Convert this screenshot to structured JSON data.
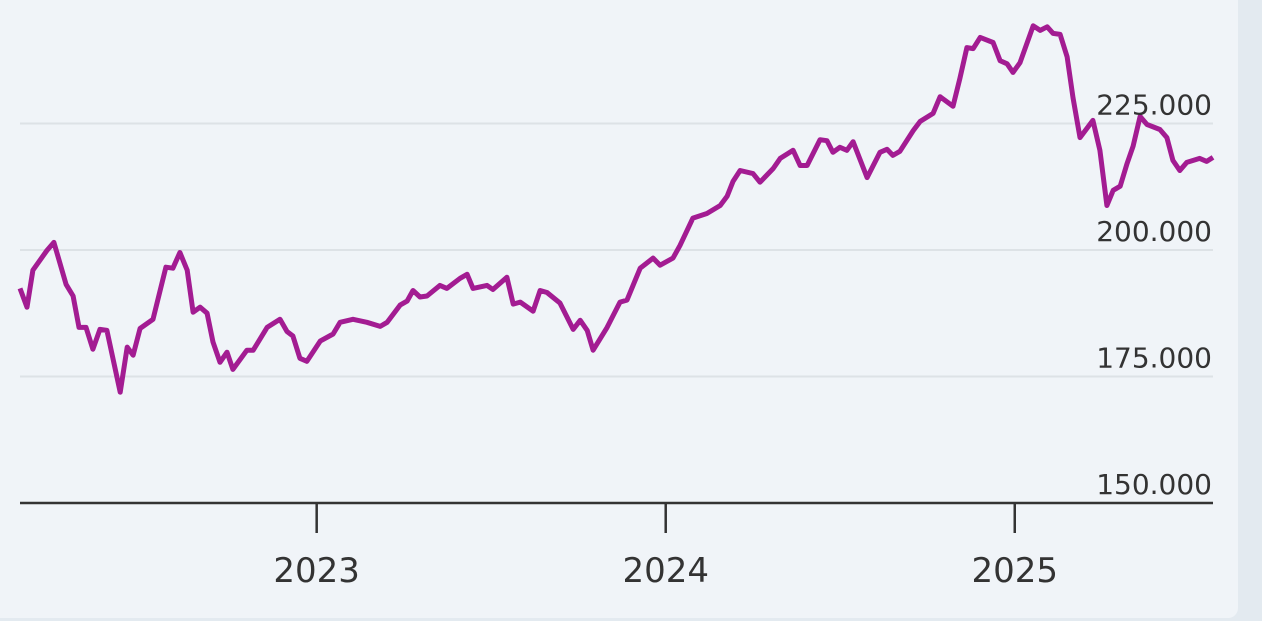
{
  "chart_data": {
    "type": "line",
    "x": [
      2022.15,
      2022.17,
      2022.187,
      2022.227,
      2022.247,
      2022.282,
      2022.302,
      2022.319,
      2022.339,
      2022.359,
      2022.379,
      2022.399,
      2022.437,
      2022.457,
      2022.474,
      2022.494,
      2022.531,
      2022.568,
      2022.588,
      2022.608,
      2022.629,
      2022.646,
      2022.666,
      2022.686,
      2022.703,
      2022.723,
      2022.743,
      2022.76,
      2022.8,
      2022.818,
      2022.858,
      2022.895,
      2022.915,
      2022.932,
      2022.952,
      2022.972,
      2023.01,
      2023.047,
      2023.067,
      2023.104,
      2023.144,
      2023.182,
      2023.202,
      2023.239,
      2023.259,
      2023.276,
      2023.296,
      2023.316,
      2023.353,
      2023.373,
      2023.411,
      2023.431,
      2023.448,
      2023.488,
      2023.505,
      2023.545,
      2023.563,
      2023.583,
      2023.62,
      2023.64,
      2023.66,
      2023.697,
      2023.735,
      2023.755,
      2023.775,
      2023.792,
      2023.832,
      2023.869,
      2023.889,
      2023.927,
      2023.964,
      2023.984,
      2024.021,
      2024.041,
      2024.078,
      2024.118,
      2024.156,
      2024.176,
      2024.193,
      2024.213,
      2024.25,
      2024.27,
      2024.308,
      2024.328,
      2024.365,
      2024.385,
      2024.405,
      2024.442,
      2024.462,
      2024.479,
      2024.499,
      2024.519,
      2024.537,
      2024.577,
      2024.614,
      2024.634,
      2024.651,
      2024.671,
      2024.709,
      2024.729,
      2024.766,
      2024.786,
      2024.823,
      2024.843,
      2024.863,
      2024.881,
      2024.901,
      2024.938,
      2024.958,
      2024.978,
      2024.995,
      2025.015,
      2025.053,
      2025.073,
      2025.093,
      2025.11,
      2025.13,
      2025.15,
      2025.167,
      2025.187,
      2025.224,
      2025.244,
      2025.264,
      2025.282,
      2025.302,
      2025.322,
      2025.339,
      2025.359,
      2025.379,
      2025.416,
      2025.436,
      2025.453,
      2025.473,
      2025.493,
      2025.53,
      2025.55,
      2025.568
    ],
    "series": [
      {
        "color": "#a31c92",
        "values": [
          192400,
          188700,
          196000,
          199900,
          201500,
          193200,
          190900,
          184700,
          184700,
          180400,
          184300,
          184100,
          171900,
          180800,
          179200,
          184500,
          186300,
          196600,
          196400,
          199500,
          196000,
          187700,
          188700,
          187500,
          181800,
          177800,
          179800,
          176400,
          180200,
          180200,
          184700,
          186300,
          183900,
          183000,
          178600,
          178000,
          182000,
          183400,
          185700,
          186300,
          185700,
          184900,
          185700,
          189100,
          189900,
          192000,
          190700,
          190900,
          193000,
          192400,
          194400,
          195200,
          192400,
          193000,
          192200,
          194600,
          189300,
          189700,
          187900,
          192000,
          191600,
          189500,
          184300,
          186100,
          184100,
          180200,
          184700,
          189700,
          190100,
          196400,
          198400,
          197000,
          198400,
          200900,
          206300,
          207200,
          208800,
          210600,
          213600,
          215700,
          215100,
          213400,
          216100,
          218100,
          219700,
          216700,
          216700,
          221800,
          221600,
          219300,
          220300,
          219700,
          221400,
          214300,
          219300,
          219900,
          218700,
          219500,
          223600,
          225400,
          227000,
          230300,
          228400,
          233900,
          240000,
          239800,
          242000,
          241000,
          237400,
          236800,
          235100,
          237000,
          244300,
          243400,
          244100,
          242800,
          242600,
          238200,
          230100,
          222200,
          225600,
          219700,
          208800,
          211800,
          212600,
          217100,
          220500,
          226400,
          224800,
          223800,
          222200,
          217700,
          215700,
          217300,
          218100,
          217500,
          218300
        ]
      }
    ],
    "xlim": [
      2022.15,
      2025.568
    ],
    "xticks": [
      2023,
      2024,
      2025
    ],
    "ylim": [
      150000,
      249400
    ],
    "yticks": [
      {
        "value": 150000,
        "label": "150.000"
      },
      {
        "value": 175000,
        "label": "175.000"
      },
      {
        "value": 200000,
        "label": "200.000"
      },
      {
        "value": 225000,
        "label": "225.000"
      }
    ],
    "grid": true
  }
}
